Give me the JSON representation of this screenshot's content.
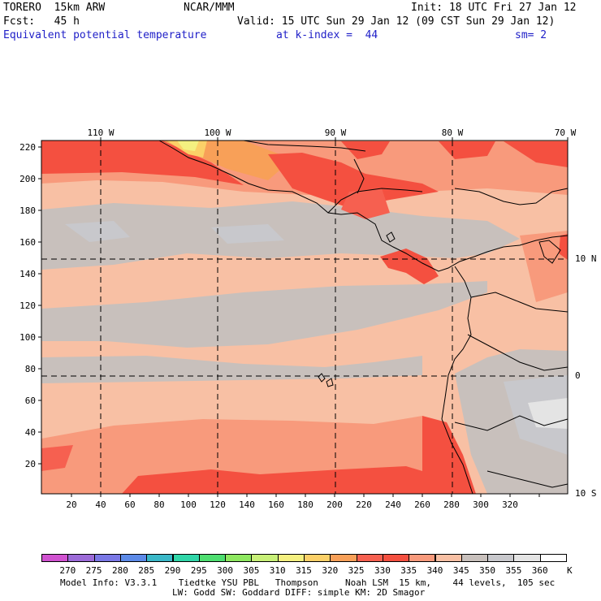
{
  "header": {
    "model": "TORERO  15km ARW",
    "center": "NCAR/MMM",
    "init": "Init: 18 UTC Fri 27 Jan 12",
    "fcst": "Fcst:   45 h",
    "valid": "Valid: 15 UTC Sun 29 Jan 12 (09 CST Sun 29 Jan 12)",
    "field": "Equivalent potential temperature",
    "level": "at k-index =  44",
    "smooth": "sm= 2"
  },
  "map": {
    "lon_labels": [
      "110 W",
      "100 W",
      "90 W",
      "80 W",
      "70 W"
    ],
    "lat_labels": [
      "10 N",
      "0",
      "10 S"
    ],
    "y_ticks": [
      "220",
      "200",
      "180",
      "160",
      "140",
      "120",
      "100",
      "80",
      "60",
      "40",
      "20"
    ],
    "x_ticks": [
      "20",
      "40",
      "60",
      "80",
      "100",
      "120",
      "140",
      "160",
      "180",
      "200",
      "220",
      "240",
      "260",
      "280",
      "300",
      "320"
    ]
  },
  "colorbar": {
    "unit": "K",
    "labels": [
      "270",
      "275",
      "280",
      "285",
      "290",
      "295",
      "300",
      "305",
      "310",
      "315",
      "320",
      "325",
      "330",
      "335",
      "340",
      "345",
      "350",
      "355",
      "360"
    ],
    "colors": [
      "#d052d0",
      "#9c6bd8",
      "#7a78e6",
      "#5c8ae8",
      "#3ab8c8",
      "#30d6a8",
      "#4ede70",
      "#8ee860",
      "#c8f078",
      "#f4f080",
      "#fbd068",
      "#f8a058",
      "#f66050",
      "#f45040",
      "#f89a7c",
      "#f8c0a4",
      "#c8c0bc",
      "#c8c8cc",
      "#e4e4e4",
      "#ffffff"
    ]
  },
  "footer": {
    "line1": "Model Info: V3.3.1    Tiedtke YSU PBL   Thompson     Noah LSM  15 km,    44 levels,  105 sec",
    "line2": "LW: Godd SW: Goddard DIFF: simple KM: 2D Smagor"
  }
}
